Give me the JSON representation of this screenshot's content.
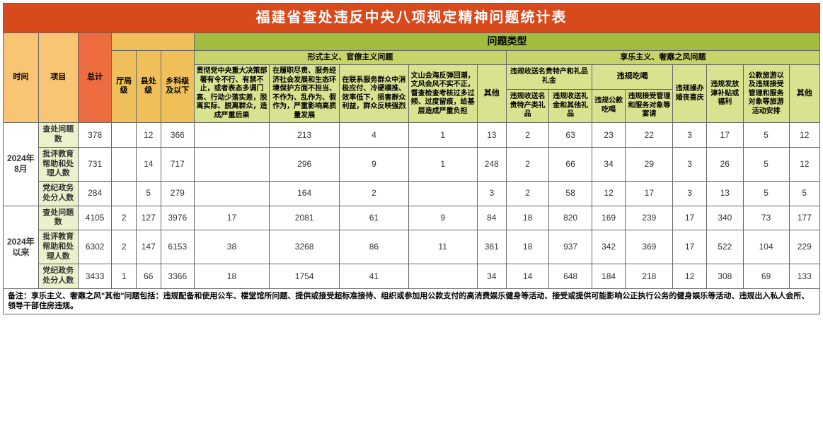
{
  "title": "福建省查处违反中央八项规定精神问题统计表",
  "colors": {
    "title_bg": "#d84a1c",
    "time_bg": "#f8c575",
    "total_bg": "#ec6b3f",
    "level_group_bg": "#efc05a",
    "issue_group_bg": "#a2bc3d",
    "issue_sub_bg": "#c7d46a",
    "leaf_bg": "#d8e28f",
    "row_label_bg": "#ecf1cc"
  },
  "head": {
    "time": "时间",
    "project": "项目",
    "total": "总计",
    "level_ting": "厅局级",
    "level_xian": "县处级",
    "level_xiang": "乡科级及以下",
    "issue_type": "问题类型",
    "formalism_group": "形式主义、官僚主义问题",
    "hedonism_group": "享乐主义、奢靡之风问题",
    "f1": "贯彻党中央重大决策部署有令不行、有禁不止，或者表态多调门高、行动少落实差，脱离实际、脱离群众，造成严重后果",
    "f2": "在履职尽责、服务经济社会发展和生态环境保护方面不担当、不作为、乱作为、假作为，严重影响高质量发展",
    "f3": "在联系服务群众中消极应付、冷硬横推、效率低下，损害群众利益，群众反映强烈",
    "f4": "文山会海反弹回潮，文风会风不实不正，督查检查考核过多过频、过度留痕，给基层造成严重负担",
    "f_other": "其他",
    "h_gift_group": "违规收送名贵特产和礼品礼金",
    "h_gift1": "违规收送名贵特产类礼品",
    "h_gift2": "违规收送礼金和其他礼品",
    "h_eat_group": "违规吃喝",
    "h_eat1": "违规公款吃喝",
    "h_eat2": "违规接受管理和服务对象等宴请",
    "h_wed": "违规操办婚丧喜庆",
    "h_bonus": "违规发放津补贴或福利",
    "h_travel": "公款旅游以及违规接受管理和服务对象等旅游活动安排",
    "h_other": "其他"
  },
  "periods": [
    {
      "label": "2024年8月",
      "rows": [
        {
          "name": "查处问题数",
          "cells": [
            "378",
            "",
            "12",
            "366",
            "",
            "213",
            "4",
            "1",
            "13",
            "2",
            "63",
            "23",
            "22",
            "3",
            "17",
            "5",
            "12"
          ]
        },
        {
          "name": "批评教育帮助和处理人数",
          "cells": [
            "731",
            "",
            "14",
            "717",
            "",
            "296",
            "9",
            "1",
            "248",
            "2",
            "66",
            "34",
            "29",
            "3",
            "26",
            "5",
            "12"
          ]
        },
        {
          "name": "党纪政务处分人数",
          "cells": [
            "284",
            "",
            "5",
            "279",
            "",
            "164",
            "2",
            "",
            "3",
            "2",
            "58",
            "12",
            "17",
            "3",
            "13",
            "5",
            "5"
          ]
        }
      ]
    },
    {
      "label": "2024年以来",
      "rows": [
        {
          "name": "查处问题数",
          "cells": [
            "4105",
            "2",
            "127",
            "3976",
            "17",
            "2081",
            "61",
            "9",
            "84",
            "18",
            "820",
            "169",
            "239",
            "17",
            "340",
            "73",
            "177"
          ]
        },
        {
          "name": "批评教育帮助和处理人数",
          "cells": [
            "6302",
            "2",
            "147",
            "6153",
            "38",
            "3268",
            "86",
            "11",
            "361",
            "18",
            "937",
            "342",
            "369",
            "17",
            "522",
            "104",
            "229"
          ]
        },
        {
          "name": "党纪政务处分人数",
          "cells": [
            "3433",
            "1",
            "66",
            "3366",
            "18",
            "1754",
            "41",
            "",
            "34",
            "14",
            "648",
            "184",
            "218",
            "12",
            "308",
            "69",
            "133"
          ]
        }
      ]
    }
  ],
  "footnote": "备注：享乐主义、奢靡之风\"其他\"问题包括：违规配备和使用公车、楼堂馆所问题、提供或接受超标准接待、组织或参加用公款支付的高消费娱乐健身等活动、接受或提供可能影响公正执行公务的健身娱乐等活动、违规出入私人会所、领导干部住房违规。",
  "widths": {
    "time": 46,
    "project": 52,
    "total": 44,
    "lv1": 32,
    "lv2": 32,
    "lv3": 44,
    "f1": 98,
    "f2": 92,
    "f3": 90,
    "f4": 90,
    "fother": 38,
    "g1": 56,
    "g2": 56,
    "e1": 44,
    "e2": 62,
    "wed": 44,
    "bonus": 48,
    "travel": 60,
    "hother": 40
  }
}
